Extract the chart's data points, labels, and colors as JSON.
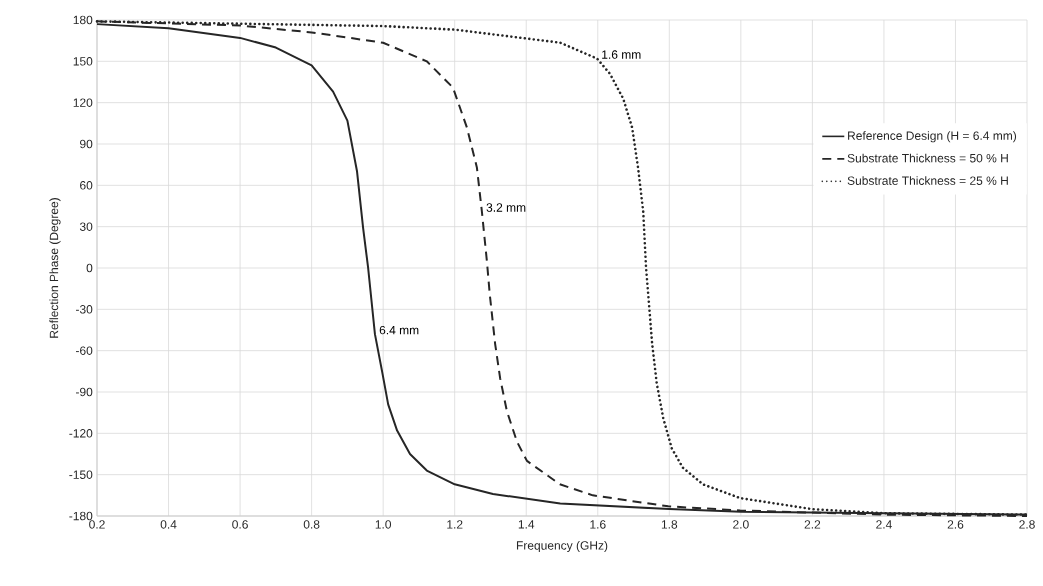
{
  "chart_data": {
    "type": "line",
    "xlabel": "Frequency (GHz)",
    "ylabel": "Reflection Phase (Degree)",
    "xlim": [
      0.2,
      2.8
    ],
    "xticks": [
      {
        "value": 0.2,
        "label": "0.2"
      },
      {
        "value": 0.4,
        "label": "0.4"
      },
      {
        "value": 0.6,
        "label": "0.6"
      },
      {
        "value": 0.8,
        "label": "0.8"
      },
      {
        "value": 1.0,
        "label": "1.0"
      },
      {
        "value": 1.2,
        "label": "1.2"
      },
      {
        "value": 1.4,
        "label": "1.4"
      },
      {
        "value": 1.6,
        "label": "1.6"
      },
      {
        "value": 1.8,
        "label": "1.8"
      },
      {
        "value": 2.0,
        "label": "2.0"
      },
      {
        "value": 2.2,
        "label": "2.2"
      },
      {
        "value": 2.4,
        "label": "2.4"
      },
      {
        "value": 2.6,
        "label": "2.6"
      },
      {
        "value": 2.8,
        "label": "2.8"
      }
    ],
    "ylim": [
      -180,
      180
    ],
    "yticks": [
      -180,
      -150,
      -120,
      -90,
      -60,
      -30,
      0,
      30,
      60,
      90,
      120,
      150,
      180
    ],
    "grid": true,
    "legend": "right",
    "marker": "none",
    "series": [
      {
        "name": "Reference Design (H = 6.4 mm)",
        "color": "#262626",
        "line_style": "solid",
        "x": [
          0.2,
          0.4,
          0.6,
          0.7,
          0.8,
          0.86,
          0.9,
          0.927,
          0.944,
          0.958,
          0.977,
          0.997,
          1.014,
          1.039,
          1.075,
          1.122,
          1.2,
          1.307,
          1.495,
          1.8,
          2.0,
          2.4,
          2.8
        ],
        "values": [
          177,
          174,
          167,
          160,
          147,
          128,
          107,
          70,
          29,
          0,
          -48,
          -75,
          -99,
          -118,
          -135,
          -147,
          -157,
          -164,
          -171,
          -175,
          -177,
          -178,
          -179
        ]
      },
      {
        "name": "Substrate Thickness = 50 % H",
        "color": "#262626",
        "line_style": "dashed",
        "x": [
          0.2,
          0.6,
          0.8,
          1.0,
          1.122,
          1.195,
          1.234,
          1.262,
          1.276,
          1.29,
          1.298,
          1.313,
          1.327,
          1.346,
          1.374,
          1.402,
          1.494,
          1.586,
          1.797,
          1.998,
          2.398,
          2.8
        ],
        "values": [
          179,
          176,
          171,
          163.5,
          150,
          131,
          102,
          73,
          41,
          5,
          -19,
          -55,
          -80,
          -104,
          -126,
          -140,
          -157,
          -165,
          -173,
          -176,
          -179,
          -180
        ]
      },
      {
        "name": "Substrate Thickness = 25 % H",
        "color": "#262626",
        "line_style": "dotted",
        "x": [
          0.2,
          1.0,
          1.2,
          1.495,
          1.598,
          1.634,
          1.671,
          1.696,
          1.713,
          1.727,
          1.735,
          1.741,
          1.752,
          1.765,
          1.783,
          1.807,
          1.838,
          1.894,
          1.998,
          2.199,
          2.398,
          2.8
        ],
        "values": [
          179,
          175.6,
          173,
          163.5,
          152,
          141,
          123,
          102,
          72,
          41,
          0,
          -19,
          -55,
          -84,
          -109,
          -131,
          -145,
          -157,
          -167,
          -175,
          -178,
          -179
        ]
      }
    ],
    "annotations": [
      {
        "text": "1.6 mm",
        "x": 1.598,
        "y": 152
      },
      {
        "text": "3.2 mm",
        "x": 1.276,
        "y": 41
      },
      {
        "text": "6.4 mm",
        "x": 0.977,
        "y": -48
      }
    ]
  }
}
